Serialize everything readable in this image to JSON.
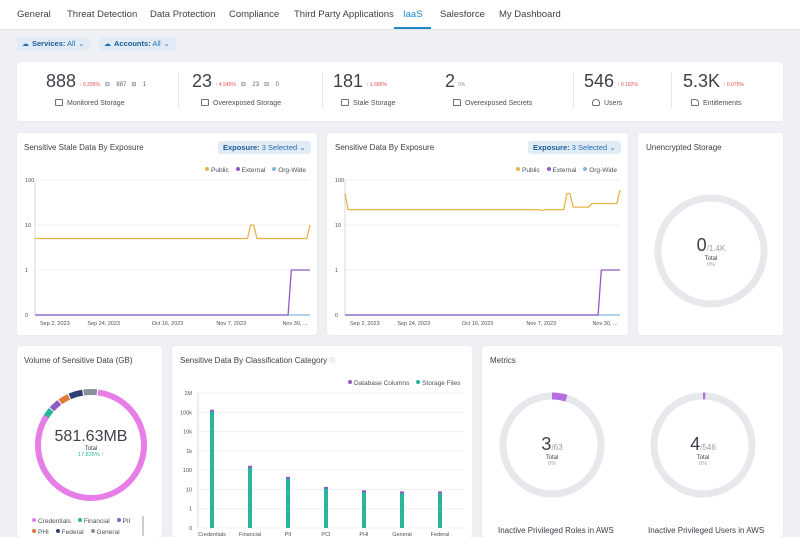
{
  "tabs": [
    {
      "label": "General"
    },
    {
      "label": "Threat Detection"
    },
    {
      "label": "Data Protection"
    },
    {
      "label": "Compliance"
    },
    {
      "label": "Third Party Applications"
    },
    {
      "label": "IaaS",
      "active": true
    },
    {
      "label": "Salesforce"
    },
    {
      "label": "My Dashboard"
    }
  ],
  "filters": {
    "services": {
      "key": "Services:",
      "value": "All"
    },
    "accounts": {
      "key": "Accounts:",
      "value": "All"
    }
  },
  "stats": [
    {
      "value": "888",
      "delta": "↑ 0.339%",
      "mini1": "887",
      "mini2": "1",
      "label": "Monitored Storage"
    },
    {
      "value": "23",
      "delta": "↑ 4.545%",
      "mini1": "23",
      "mini2": "0",
      "label": "Overexposed Storage"
    },
    {
      "value": "181",
      "delta": "↑ 1.685%",
      "label": "Stale Storage"
    },
    {
      "value": "2",
      "delta": "0%",
      "label": "Overexposed Secrets"
    },
    {
      "value": "546",
      "delta": "↑ 0.182%",
      "label": "Users"
    },
    {
      "value": "5.3K",
      "delta": "↑ 0.075%",
      "label": "Entitlements"
    }
  ],
  "stale_card": {
    "title": "Sensitive Stale Data By Exposure",
    "dropdown_key": "Exposure:",
    "dropdown_value": "3 Selected",
    "legend": [
      "Public",
      "External",
      "Org-Wide"
    ]
  },
  "exposure_card": {
    "title": "Sensitive Data By Exposure",
    "dropdown_key": "Exposure:",
    "dropdown_value": "3 Selected",
    "legend": [
      "Public",
      "External",
      "Org-Wide"
    ]
  },
  "unencrypted_card": {
    "title": "Unencrypted Storage",
    "value": "0",
    "total": "/1.4K",
    "total_label": "Total",
    "percent": "0%"
  },
  "volume_card": {
    "title": "Volume of Sensitive Data (GB)",
    "value": "581.63MB",
    "total_label": "Total",
    "change": "17.825% ↑",
    "legend_row1": [
      "Credentials",
      "Financial",
      "PII"
    ],
    "legend_row2": [
      "PHI",
      "Federal",
      "General"
    ]
  },
  "classification_card": {
    "title": "Sensitive Data By Classification Category",
    "info_icon": "info-icon",
    "legend": [
      "Database Columns",
      "Storage Files"
    ]
  },
  "metrics_card": {
    "title": "Metrics",
    "roles": {
      "value": "3",
      "total": "/63",
      "total_label": "Total",
      "percent": "0%",
      "caption": "Inactive Privileged Roles in AWS"
    },
    "users": {
      "value": "4",
      "total": "/546",
      "total_label": "Total",
      "percent": "0%",
      "caption": "Inactive Privileged Users in AWS"
    }
  },
  "colors": {
    "accent": "#1f88c9",
    "public": "#e8b44a",
    "external": "#8e5bc4",
    "orgwide": "#7fb9d9",
    "storage_files": "#2bb59a",
    "database_columns": "#8e5bc4",
    "donut_main": "#e77ee8"
  },
  "chart_data": [
    {
      "type": "line",
      "title": "Sensitive Stale Data By Exposure",
      "yscale": "log",
      "yticks": [
        "0",
        "1",
        "10",
        "100"
      ],
      "x_ticks": [
        "Sep 2, 2023",
        "Sep 24, 2023",
        "Oct 16, 2023",
        "Nov 7, 2023",
        "Nov 30, ..."
      ],
      "series": [
        {
          "name": "Public",
          "values": [
            5,
            5,
            5,
            5,
            5,
            5,
            5,
            5,
            5,
            5,
            5,
            5,
            5,
            5,
            5,
            5,
            5,
            5,
            5,
            5,
            5,
            5,
            5,
            5,
            5,
            5,
            5,
            5,
            5,
            5,
            5,
            5,
            5,
            5,
            5,
            5,
            5,
            5,
            5,
            5,
            5,
            5,
            5,
            5,
            5,
            5,
            5,
            5,
            5,
            5,
            5,
            5,
            5,
            5,
            5,
            5,
            5,
            5,
            5,
            5,
            5,
            5,
            5,
            5,
            5,
            5,
            5,
            5,
            5,
            10,
            10,
            5,
            5,
            5,
            5,
            5,
            5,
            5,
            5,
            5,
            5,
            5,
            5,
            5,
            5,
            5,
            5,
            5,
            10
          ]
        },
        {
          "name": "External",
          "values": [
            0,
            0,
            0,
            0,
            0,
            0,
            0,
            0,
            0,
            0,
            0,
            0,
            0,
            0,
            0,
            0,
            0,
            0,
            0,
            0,
            0,
            0,
            0,
            0,
            0,
            0,
            0,
            0,
            0,
            0,
            0,
            0,
            0,
            0,
            0,
            0,
            0,
            0,
            0,
            0,
            0,
            0,
            0,
            0,
            0,
            0,
            0,
            0,
            0,
            0,
            0,
            0,
            0,
            0,
            0,
            0,
            0,
            0,
            0,
            0,
            0,
            0,
            0,
            0,
            0,
            0,
            0,
            0,
            0,
            0,
            0,
            0,
            0,
            0,
            0,
            0,
            0,
            0,
            0,
            0,
            0,
            0,
            1,
            1,
            1,
            1,
            1,
            1,
            1
          ]
        },
        {
          "name": "Org-Wide",
          "values": [
            0,
            0,
            0,
            0,
            0,
            0,
            0,
            0,
            0,
            0,
            0,
            0,
            0,
            0,
            0,
            0,
            0,
            0,
            0,
            0,
            0,
            0,
            0,
            0,
            0,
            0,
            0,
            0,
            0,
            0,
            0,
            0,
            0,
            0,
            0,
            0,
            0,
            0,
            0,
            0,
            0,
            0,
            0,
            0,
            0,
            0,
            0,
            0,
            0,
            0,
            0,
            0,
            0,
            0,
            0,
            0,
            0,
            0,
            0,
            0,
            0,
            0,
            0,
            0,
            0,
            0,
            0,
            0,
            0,
            0,
            0,
            0,
            0,
            0,
            0,
            0,
            0,
            0,
            0,
            0,
            0,
            0,
            0,
            0,
            0,
            0,
            0,
            0,
            0
          ]
        }
      ]
    },
    {
      "type": "line",
      "title": "Sensitive Data By Exposure",
      "yscale": "log",
      "yticks": [
        "0",
        "1",
        "10",
        "100"
      ],
      "x_ticks": [
        "Sep 2, 2023",
        "Sep 24, 2023",
        "Oct 16, 2023",
        "Nov 7, 2023",
        "Nov 30, ..."
      ],
      "series": [
        {
          "name": "Public",
          "values": [
            50,
            22,
            22,
            22,
            22,
            22,
            22,
            22,
            22,
            22,
            22,
            22,
            22,
            22,
            22,
            22,
            22,
            22,
            22,
            22,
            22,
            22,
            22,
            22,
            22,
            22,
            22,
            22,
            22,
            22,
            22,
            22,
            22,
            22,
            22,
            22,
            22,
            22,
            22,
            22,
            22,
            22,
            22,
            22,
            22,
            22,
            22,
            22,
            22,
            22,
            22,
            22,
            22,
            22,
            22,
            22,
            22,
            22,
            22,
            22,
            22,
            22,
            22,
            21,
            22,
            22,
            22,
            22,
            22,
            22,
            22,
            50,
            50,
            25,
            25,
            25,
            25,
            25,
            25,
            30,
            30,
            30,
            30,
            30,
            30,
            30,
            30,
            30,
            60
          ]
        },
        {
          "name": "External",
          "values": [
            0,
            0,
            0,
            0,
            0,
            0,
            0,
            0,
            0,
            0,
            0,
            0,
            0,
            0,
            0,
            0,
            0,
            0,
            0,
            0,
            0,
            0,
            0,
            0,
            0,
            0,
            0,
            0,
            0,
            0,
            0,
            0,
            0,
            0,
            0,
            0,
            0,
            0,
            0,
            0,
            0,
            0,
            0,
            0,
            0,
            0,
            0,
            0,
            0,
            0,
            0,
            0,
            0,
            0,
            0,
            0,
            0,
            0,
            0,
            0,
            0,
            0,
            0,
            0,
            0,
            0,
            0,
            0,
            0,
            0,
            0,
            0,
            0,
            0,
            0,
            0,
            0,
            0,
            0,
            0,
            0,
            0,
            1,
            1,
            1,
            1,
            1,
            1,
            1
          ]
        },
        {
          "name": "Org-Wide",
          "values": [
            0,
            0,
            0,
            0,
            0,
            0,
            0,
            0,
            0,
            0,
            0,
            0,
            0,
            0,
            0,
            0,
            0,
            0,
            0,
            0,
            0,
            0,
            0,
            0,
            0,
            0,
            0,
            0,
            0,
            0,
            0,
            0,
            0,
            0,
            0,
            0,
            0,
            0,
            0,
            0,
            0,
            0,
            0,
            0,
            0,
            0,
            0,
            0,
            0,
            0,
            0,
            0,
            0,
            0,
            0,
            0,
            0,
            0,
            0,
            0,
            0,
            0,
            0,
            0,
            0,
            0,
            0,
            0,
            0,
            0,
            0,
            0,
            0,
            0,
            0,
            0,
            0,
            0,
            0,
            0,
            0,
            0,
            0,
            0,
            0,
            0,
            0,
            0,
            0
          ]
        }
      ]
    },
    {
      "type": "bar",
      "title": "Sensitive Data By Classification Category",
      "yscale": "log",
      "yticks": [
        "0",
        "1",
        "10",
        "100",
        "1k",
        "10k",
        "100k",
        "1M"
      ],
      "categories": [
        "Credentials",
        "Financial",
        "PII",
        "PCI",
        "PHI",
        "General",
        "Federal"
      ],
      "series": [
        {
          "name": "Storage Files",
          "values": [
            120000,
            150,
            40,
            12,
            8,
            7,
            7
          ]
        },
        {
          "name": "Database Columns",
          "values": [
            0,
            0,
            0,
            0,
            0,
            0,
            0
          ]
        }
      ]
    },
    {
      "type": "pie",
      "title": "Volume of Sensitive Data (GB)",
      "categories": [
        "Credentials",
        "Financial",
        "PII",
        "PHI",
        "Federal",
        "General"
      ],
      "values": [
        82,
        4,
        3,
        3,
        4,
        4
      ]
    }
  ]
}
